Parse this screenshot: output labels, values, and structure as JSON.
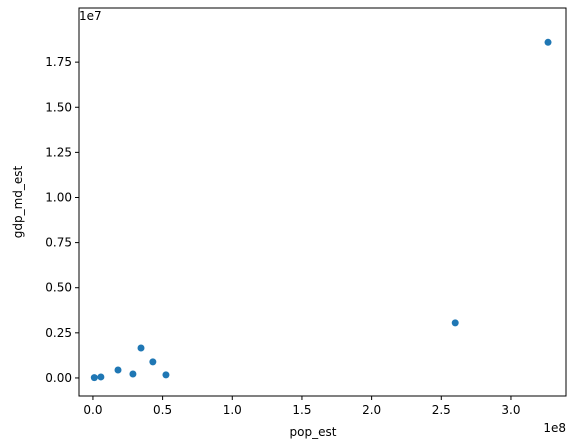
{
  "chart_data": {
    "type": "scatter",
    "x_label": "pop_est",
    "y_label": "gdp_md_est",
    "x_offset_label": "1e8",
    "y_offset_label": "1e7",
    "color": "#1f77b4",
    "x": [
      1000000,
      5700000,
      18000000,
      28700000,
      34500000,
      43000000,
      52400000,
      260000000,
      326600000
    ],
    "values": [
      20000,
      55000,
      440000,
      220000,
      1660000,
      890000,
      170000,
      3050000,
      18600000
    ],
    "xlim": [
      -10000000,
      339500000
    ],
    "xticks": [
      {
        "value": 0,
        "label": "0.0"
      },
      {
        "value": 50000000,
        "label": "0.5"
      },
      {
        "value": 100000000,
        "label": "1.0"
      },
      {
        "value": 150000000,
        "label": "1.5"
      },
      {
        "value": 200000000,
        "label": "2.0"
      },
      {
        "value": 250000000,
        "label": "2.5"
      },
      {
        "value": 300000000,
        "label": "3.0"
      }
    ],
    "ylim": [
      -1000000,
      20500000
    ],
    "yticks": [
      {
        "value": 0,
        "label": "0.00"
      },
      {
        "value": 2500000,
        "label": "0.25"
      },
      {
        "value": 5000000,
        "label": "0.50"
      },
      {
        "value": 7500000,
        "label": "0.75"
      },
      {
        "value": 10000000,
        "label": "1.00"
      },
      {
        "value": 12500000,
        "label": "1.25"
      },
      {
        "value": 15000000,
        "label": "1.50"
      },
      {
        "value": 17500000,
        "label": "1.75"
      }
    ]
  }
}
